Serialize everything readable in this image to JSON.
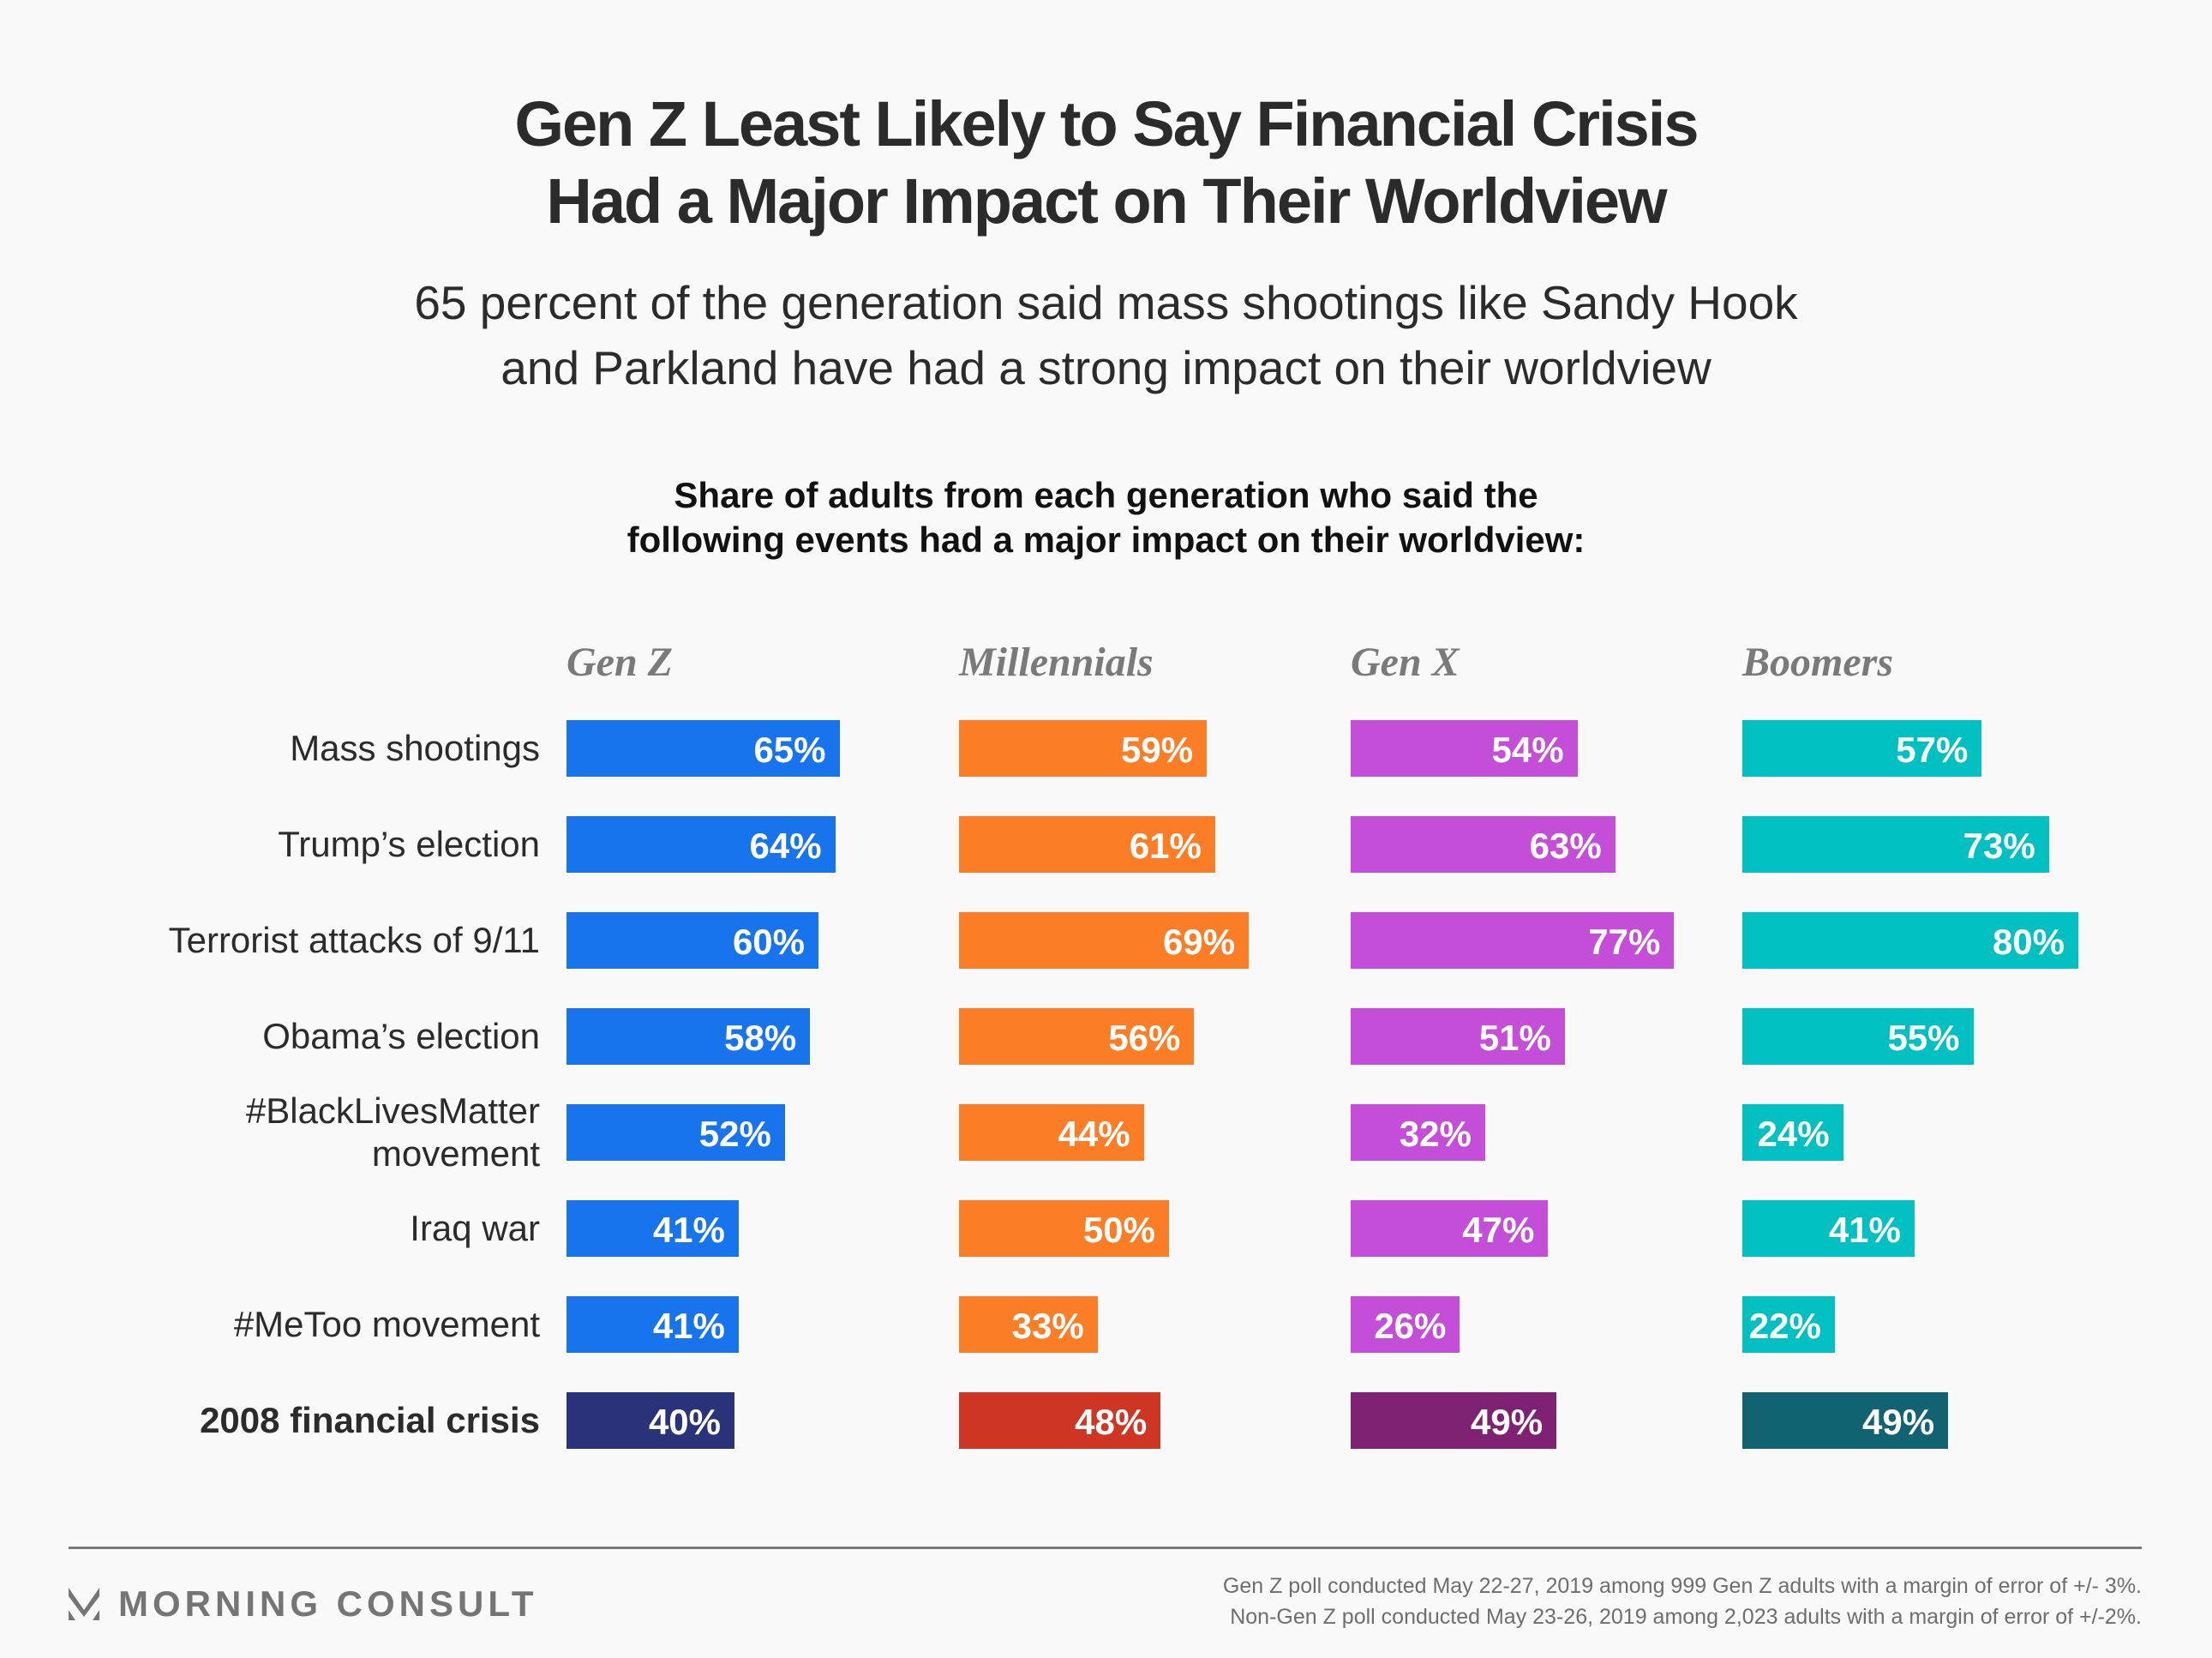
{
  "header": {
    "title_line1": "Gen Z Least Likely to Say Financial Crisis",
    "title_line2": "Had a Major Impact on Their Worldview",
    "subtitle_line1": "65 percent of the generation said mass shootings like Sandy Hook",
    "subtitle_line2": "and Parkland have had a strong impact on their worldview"
  },
  "chart_data": {
    "type": "bar",
    "orientation": "horizontal",
    "layout": "small-multiples",
    "title": "Share of adults from each generation who said the following events had a major impact on their worldview:",
    "title_line1": "Share of adults from each generation who said the",
    "title_line2": "following events had a major impact on their worldview:",
    "xlabel": "",
    "ylabel": "",
    "unit": "%",
    "xlim": [
      0,
      100
    ],
    "grid": false,
    "categories": [
      "Mass shootings",
      "Trump’s election",
      "Terrorist attacks of 9/11",
      "Obama’s election",
      "#BlackLivesMatter movement",
      "Iraq war",
      "#MeToo movement",
      "2008 financial crisis"
    ],
    "category_lines": [
      [
        "Mass shootings"
      ],
      [
        "Trump’s election"
      ],
      [
        "Terrorist attacks of 9/11"
      ],
      [
        "Obama’s election"
      ],
      [
        "#BlackLivesMatter",
        "movement"
      ],
      [
        "Iraq war"
      ],
      [
        "#MeToo movement"
      ],
      [
        "2008 financial crisis"
      ]
    ],
    "highlighted_category": "2008 financial crisis",
    "series": [
      {
        "name": "Gen Z",
        "values": [
          65,
          64,
          60,
          58,
          52,
          41,
          41,
          40
        ],
        "color": "#1874ed",
        "highlight_color": "#2a327a"
      },
      {
        "name": "Millennials",
        "values": [
          59,
          61,
          69,
          56,
          44,
          50,
          33,
          48
        ],
        "color": "#fb7e27",
        "highlight_color": "#ce3522"
      },
      {
        "name": "Gen X",
        "values": [
          54,
          63,
          77,
          51,
          32,
          47,
          26,
          49
        ],
        "color": "#c44ed8",
        "highlight_color": "#7e2173"
      },
      {
        "name": "Boomers",
        "values": [
          57,
          73,
          80,
          55,
          24,
          41,
          22,
          49
        ],
        "color": "#00c0c2",
        "highlight_color": "#116371"
      }
    ]
  },
  "footer": {
    "brand": "MORNING CONSULT",
    "note_line1": "Gen Z poll conducted May 22-27, 2019 among 999 Gen Z adults with a margin of error of +/- 3%.",
    "note_line2": "Non-Gen Z poll conducted May 23-26, 2019 among 2,023 adults with a margin of error of +/-2%."
  }
}
